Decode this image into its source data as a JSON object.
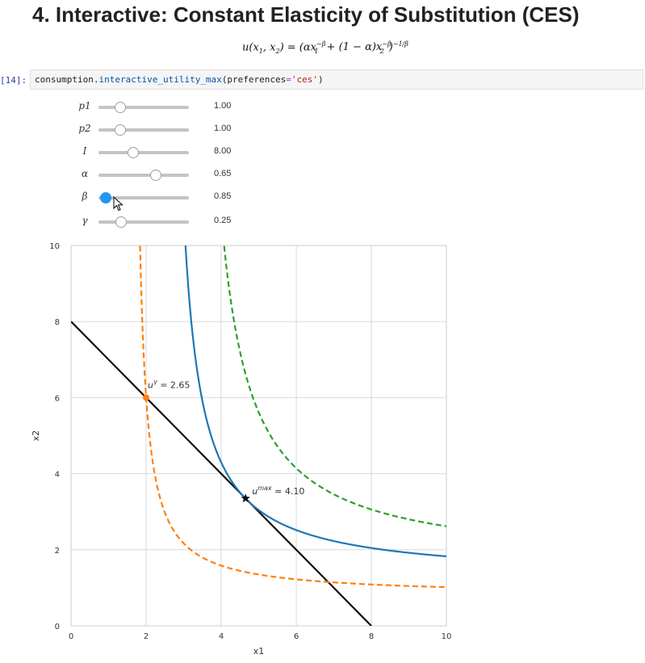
{
  "page": {
    "heading": "4. Interactive: Constant Elasticity of Substitution (CES)",
    "formula_parts": {
      "lhs": "u(x",
      "sub1": "1",
      "comma": ", x",
      "sub2": "2",
      "mid": ") = (αx",
      "exp1": "−β",
      "sub3": "1",
      "plus": " + (1 − α)x",
      "exp2": "−β",
      "sub4": "2",
      "close": ")",
      "exp3": "−1/β"
    }
  },
  "cell": {
    "prompt": "[14]:",
    "code_obj": "consumption.",
    "code_fn": "interactive_utility_max",
    "code_open": "(preferences",
    "code_eq": "=",
    "code_str": "'ces'",
    "code_close": ")"
  },
  "sliders": [
    {
      "label": "p1",
      "value": 1.0,
      "min": 0.05,
      "max": 4.0,
      "display": "1.00"
    },
    {
      "label": "p2",
      "value": 1.0,
      "min": 0.05,
      "max": 4.0,
      "display": "1.00"
    },
    {
      "label": "I",
      "value": 8.0,
      "min": 0.5,
      "max": 20.0,
      "display": "8.00"
    },
    {
      "label": "α",
      "value": 0.65,
      "min": 0.05,
      "max": 0.99,
      "display": "0.65"
    },
    {
      "label": "β",
      "value": 0.85,
      "min": 0.5,
      "max": 5.0,
      "display": "0.85"
    },
    {
      "label": "γ",
      "value": 0.25,
      "min": 0.0,
      "max": 1.0,
      "display": "0.25"
    }
  ],
  "colors": {
    "accent": "#2196f3",
    "blue": "#1f77b4",
    "orange": "#ff7f0e",
    "green": "#2ca02c",
    "budget": "#111111",
    "grid": "#d9d9d9"
  },
  "chart_data": {
    "type": "line",
    "xlabel": "x1",
    "ylabel": "x2",
    "xlim": [
      0,
      10
    ],
    "ylim": [
      0,
      10
    ],
    "xticks": [
      "0",
      "2",
      "4",
      "6",
      "8",
      "10"
    ],
    "yticks": [
      "0",
      "2",
      "4",
      "6",
      "8",
      "10"
    ],
    "grid": true,
    "alpha": 0.65,
    "beta": 0.85,
    "series": [
      {
        "style": "solid",
        "color": "#111111",
        "kind": "budget",
        "income": 8,
        "p1": 1,
        "p2": 1
      },
      {
        "style": "solid",
        "color": "#1f77b4",
        "kind": "indifference",
        "u": 4.1
      },
      {
        "style": "dashed",
        "color": "#ff7f0e",
        "kind": "indifference",
        "u": 2.65
      },
      {
        "style": "dashed",
        "color": "#2ca02c",
        "kind": "indifference",
        "u": 5.2
      }
    ],
    "points": [
      {
        "x": 4.65,
        "y": 3.35,
        "marker": "star",
        "color": "#111111",
        "label_main": "u",
        "label_sup": "max",
        "label_rest": " = 4.10"
      },
      {
        "x": 2.0,
        "y": 6.0,
        "marker": "circle",
        "color": "#ff7f0e",
        "label_main": "u",
        "label_sup": "γ",
        "label_rest": " = 2.65"
      }
    ]
  }
}
